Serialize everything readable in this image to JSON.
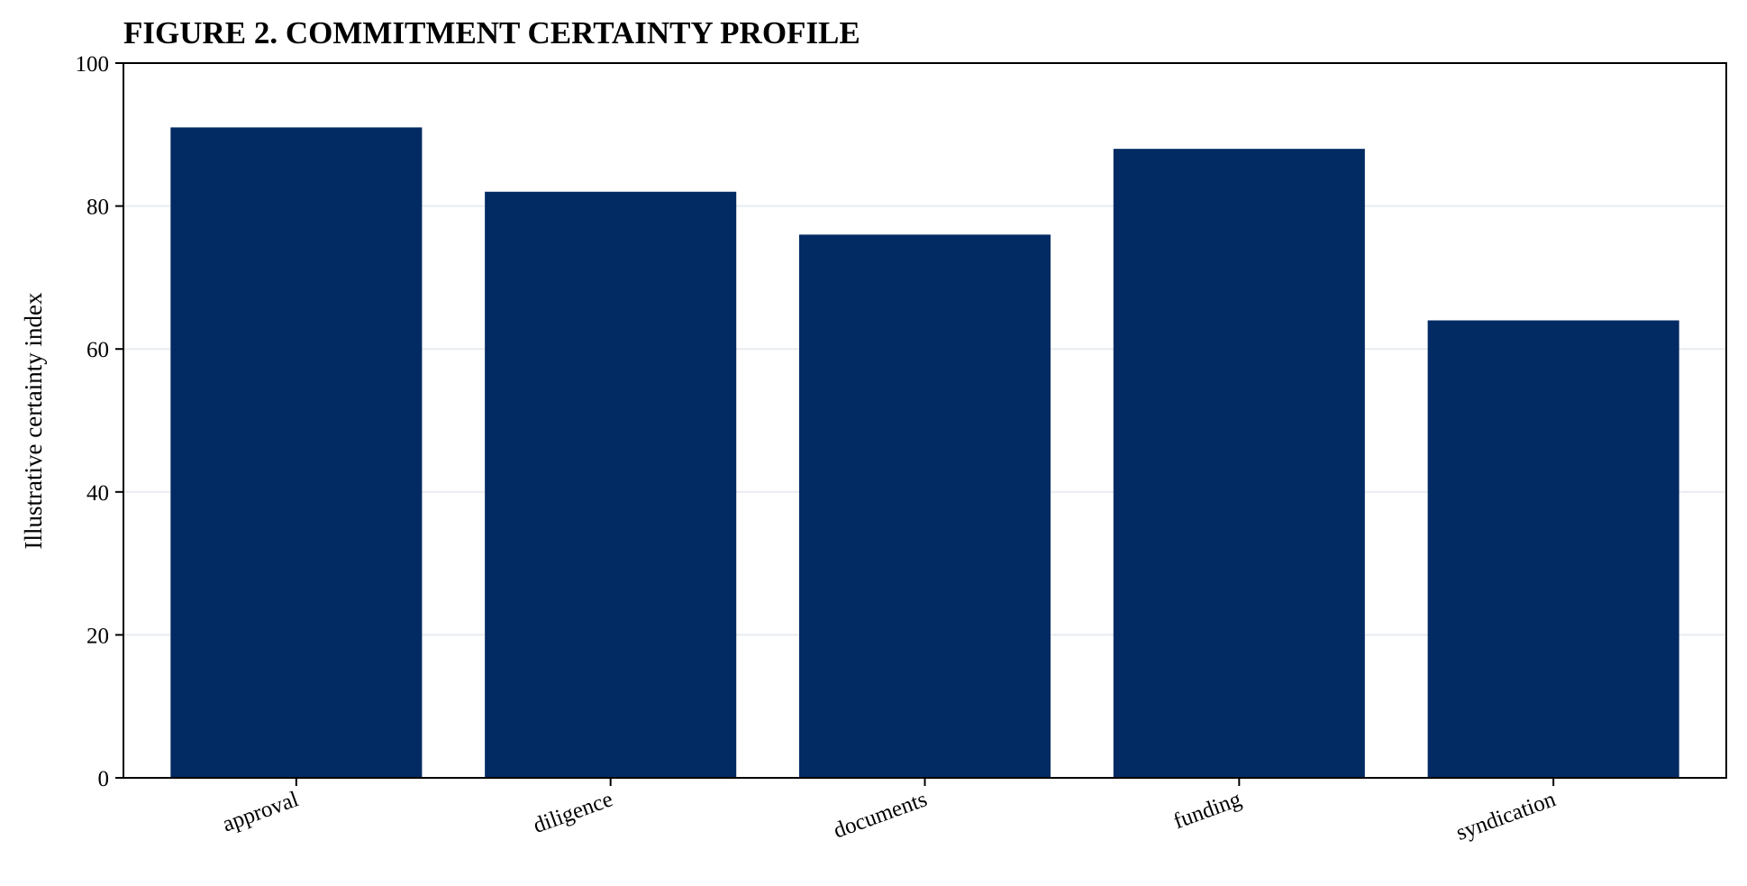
{
  "chart_data": {
    "type": "bar",
    "title": "FIGURE 2. COMMITMENT CERTAINTY PROFILE",
    "xlabel": "",
    "ylabel": "Illustrative certainty index",
    "categories": [
      "approval",
      "diligence",
      "documents",
      "funding",
      "syndication"
    ],
    "values": [
      91,
      82,
      76,
      88,
      64
    ],
    "ylim": [
      0,
      100
    ],
    "yticks": [
      0,
      20,
      40,
      60,
      80,
      100
    ],
    "grid": "horizontal",
    "legend": "none",
    "bar_color": "#022A63",
    "grid_color": "#E8ECF0"
  }
}
